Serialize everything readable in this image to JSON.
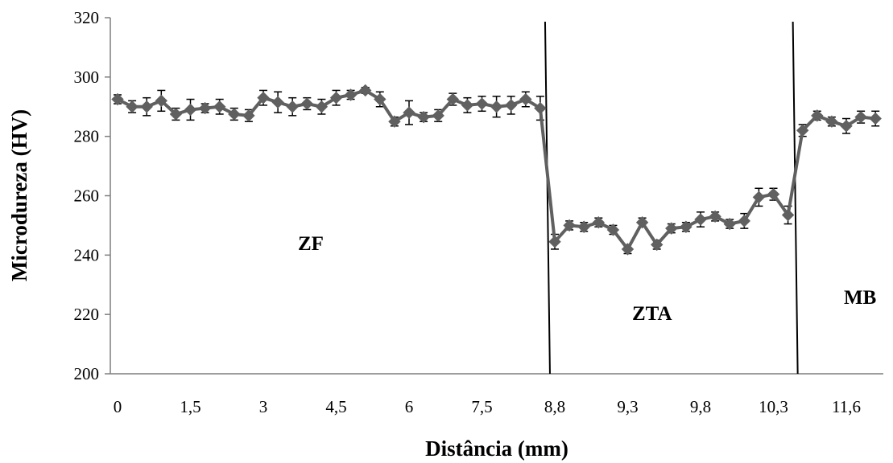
{
  "chart_data": {
    "type": "line",
    "xlabel": "Distância (mm)",
    "ylabel": "Microdureza (HV)",
    "ylim": [
      200,
      320
    ],
    "yticks": [
      200,
      220,
      240,
      260,
      280,
      300,
      320
    ],
    "xtick_labels": [
      "0",
      "1,5",
      "3",
      "4,5",
      "6",
      "7,5",
      "8,8",
      "9,3",
      "9,8",
      "10,3",
      "11,6"
    ],
    "grid": false,
    "legend": "none",
    "series_color": "#606060",
    "marker": "diamond",
    "series": [
      {
        "values": [
          292.5,
          290,
          290,
          292,
          287.5,
          289,
          289.5,
          290,
          287.5,
          287,
          293,
          291.5,
          290,
          291,
          290,
          293,
          294,
          295.5,
          292.5,
          285,
          288,
          286.5,
          287,
          292.5,
          290.5,
          291,
          290,
          290.5,
          292.5,
          289.5,
          244.5,
          250,
          249.5,
          251,
          248.5,
          242,
          251,
          243.5,
          249,
          249.5,
          252,
          253,
          250.5,
          251.5,
          259.5,
          260.5,
          253.5,
          282,
          287,
          285,
          283.5,
          286.5,
          286
        ],
        "error": [
          1.5,
          2,
          3,
          3.5,
          2,
          3.5,
          1.5,
          2.5,
          2,
          2,
          2.5,
          3.5,
          3,
          2,
          2.5,
          2.5,
          1.5,
          1,
          2.5,
          1.5,
          4,
          1.5,
          2,
          2,
          2.5,
          2.5,
          3.5,
          3,
          2.5,
          4,
          2.5,
          1.5,
          1.5,
          1.5,
          1.5,
          1.5,
          1.5,
          1.5,
          1.5,
          1.5,
          2.5,
          1.5,
          1.5,
          2.5,
          3,
          2,
          3,
          2,
          1.5,
          1.5,
          2.5,
          2,
          2.5
        ]
      }
    ],
    "boundaries_after_point": [
      29,
      46
    ],
    "zones": [
      "ZF",
      "ZTA",
      "MB"
    ]
  }
}
